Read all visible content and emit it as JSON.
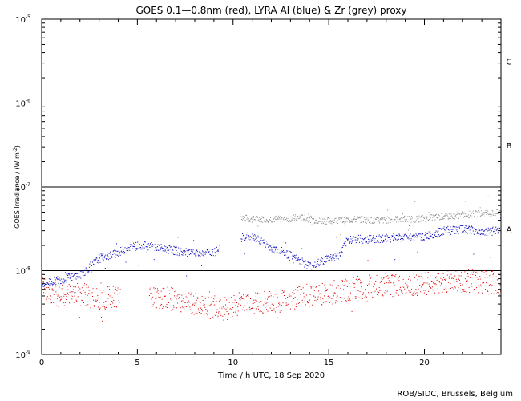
{
  "chart_data": {
    "type": "scatter",
    "title": "GOES 0.1—0.8nm (red), LYRA Al (blue) & Zr (grey) proxy",
    "xlabel": "Time / h UTC, 18 Sep 2020",
    "ylabel_main": "GOES Irradiance / (W m",
    "ylabel_sup": "-2",
    "ylabel_close": ")",
    "xlim": [
      0,
      24
    ],
    "ylim_log10": [
      -9,
      -5
    ],
    "y_scale": "log",
    "x_ticks": [
      {
        "value": 0,
        "label": "0"
      },
      {
        "value": 5,
        "label": "5"
      },
      {
        "value": 10,
        "label": "10"
      },
      {
        "value": 15,
        "label": "15"
      },
      {
        "value": 20,
        "label": "20"
      }
    ],
    "y_ticks": [
      {
        "exp": -5,
        "base": "10",
        "sup": "-5"
      },
      {
        "exp": -6,
        "base": "10",
        "sup": "-6"
      },
      {
        "exp": -7,
        "base": "10",
        "sup": "-7"
      },
      {
        "exp": -8,
        "base": "10",
        "sup": "-8"
      },
      {
        "exp": -9,
        "base": "10",
        "sup": "-9"
      }
    ],
    "flare_classes": [
      {
        "label": "C",
        "exp": -5.5
      },
      {
        "label": "B",
        "exp": -6.5
      },
      {
        "label": "A",
        "exp": -7.5
      }
    ],
    "threshold_lines_exp": [
      -6,
      -7,
      -8
    ],
    "series": [
      {
        "name": "LYRA Zr (grey)",
        "color": "#8c8c8c",
        "x": [
          10.4,
          10.8,
          11.5,
          12.5,
          13.5,
          14.5,
          15.5,
          16.5,
          17.5,
          18.5,
          19.5,
          20.5,
          21.5,
          22.5,
          23.5,
          24.0
        ],
        "y_log10": [
          -7.35,
          -7.38,
          -7.38,
          -7.38,
          -7.36,
          -7.4,
          -7.4,
          -7.38,
          -7.4,
          -7.38,
          -7.38,
          -7.36,
          -7.34,
          -7.32,
          -7.31,
          -7.3
        ]
      },
      {
        "name": "LYRA Al (blue)",
        "color": "#0000bb",
        "x": [
          0.0,
          1.0,
          2.0,
          2.5,
          3.0,
          3.5,
          4.0,
          4.5,
          5.0,
          5.5,
          6.0,
          7.0,
          8.0,
          9.0,
          10.4,
          10.8,
          11.5,
          12.0,
          12.5,
          13.0,
          13.5,
          14.0,
          14.5,
          15.0,
          15.5,
          16.0,
          17.0,
          18.0,
          19.0,
          20.0,
          21.0,
          22.0,
          23.0,
          24.0
        ],
        "y_log10": [
          -8.15,
          -8.1,
          -8.05,
          -7.95,
          -7.85,
          -7.82,
          -7.78,
          -7.72,
          -7.7,
          -7.7,
          -7.72,
          -7.76,
          -7.8,
          -7.78,
          -7.6,
          -7.58,
          -7.65,
          -7.72,
          -7.76,
          -7.82,
          -7.88,
          -7.94,
          -7.9,
          -7.84,
          -7.82,
          -7.62,
          -7.62,
          -7.61,
          -7.6,
          -7.59,
          -7.52,
          -7.5,
          -7.53,
          -7.52
        ]
      },
      {
        "name": "GOES 0.1—0.8nm (red)",
        "color": "#dd0000",
        "x": [
          0.0,
          1.0,
          2.0,
          3.0,
          4.0,
          5.5,
          6.5,
          7.5,
          8.5,
          9.5,
          10.0,
          10.5,
          11.5,
          12.5,
          13.5,
          14.5,
          15.5,
          16.5,
          17.5,
          18.5,
          19.5,
          20.5,
          21.5,
          22.5,
          23.5,
          24.0
        ],
        "y_log10": [
          -8.2,
          -8.3,
          -8.28,
          -8.32,
          -8.3,
          -8.28,
          -8.32,
          -8.38,
          -8.42,
          -8.45,
          -8.42,
          -8.35,
          -8.38,
          -8.36,
          -8.3,
          -8.28,
          -8.24,
          -8.2,
          -8.18,
          -8.16,
          -8.16,
          -8.15,
          -8.13,
          -8.12,
          -8.14,
          -8.15
        ]
      }
    ],
    "credit": "ROB/SIDC, Brussels, Belgium"
  }
}
